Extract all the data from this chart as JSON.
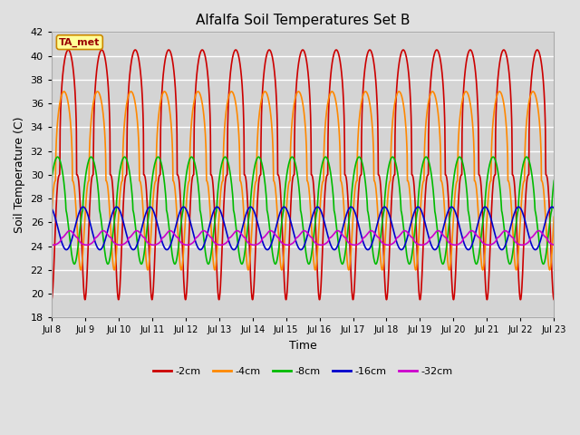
{
  "title": "Alfalfa Soil Temperatures Set B",
  "xlabel": "Time",
  "ylabel": "Soil Temperature (C)",
  "ylim": [
    18,
    42
  ],
  "n_days": 15,
  "background_color": "#e0e0e0",
  "plot_bg_color": "#d4d4d4",
  "grid_color": "#ffffff",
  "annotation_text": "TA_met",
  "annotation_bg": "#ffff99",
  "annotation_border": "#cc8800",
  "annotation_text_color": "#990000",
  "series_order": [
    "-2cm",
    "-4cm",
    "-8cm",
    "-16cm",
    "-32cm"
  ],
  "series": {
    "-2cm": {
      "color": "#cc0000",
      "lw": 1.2,
      "mean": 30.0,
      "amp": 10.5,
      "phase": 0.0,
      "skew": 3.0
    },
    "-4cm": {
      "color": "#ff8800",
      "lw": 1.2,
      "mean": 29.5,
      "amp": 7.5,
      "phase": 0.8,
      "skew": 2.5
    },
    "-8cm": {
      "color": "#00bb00",
      "lw": 1.2,
      "mean": 27.0,
      "amp": 4.5,
      "phase": 2.0,
      "skew": 1.5
    },
    "-16cm": {
      "color": "#0000cc",
      "lw": 1.2,
      "mean": 25.5,
      "amp": 1.8,
      "phase": 3.5,
      "skew": 1.0
    },
    "-32cm": {
      "color": "#cc00cc",
      "lw": 1.2,
      "mean": 24.7,
      "amp": 0.6,
      "phase": 6.0,
      "skew": 0.5
    }
  },
  "tick_labels": [
    "Jul 8",
    "Jul 9",
    "Jul 10",
    "Jul 11",
    "Jul 12",
    "Jul 13",
    "Jul 14",
    "Jul 15",
    "Jul 16",
    "Jul 17",
    "Jul 18",
    "Jul 19",
    "Jul 20",
    "Jul 21",
    "Jul 22",
    "Jul 23"
  ],
  "yticks": [
    18,
    20,
    22,
    24,
    26,
    28,
    30,
    32,
    34,
    36,
    38,
    40,
    42
  ]
}
